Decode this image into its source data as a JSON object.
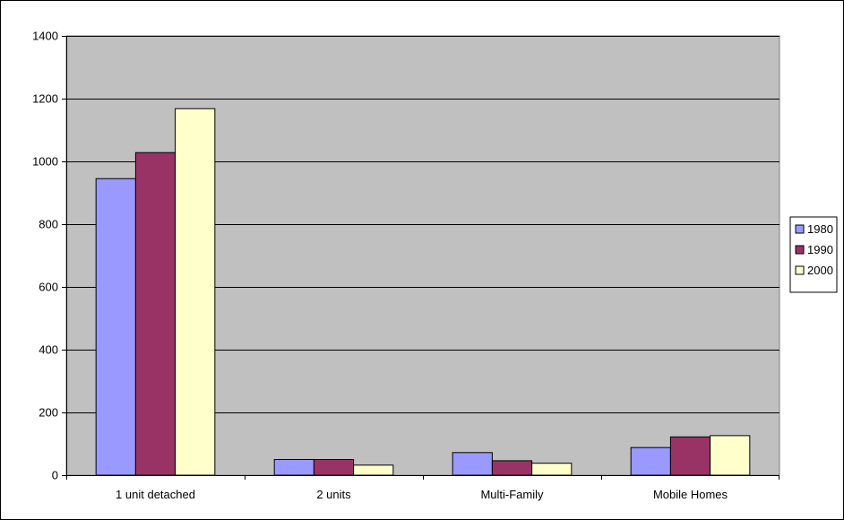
{
  "chart_data": {
    "type": "bar",
    "categories": [
      "1 unit detached",
      "2 units",
      "Multi-Family",
      "Mobile Homes"
    ],
    "series": [
      {
        "name": "1980",
        "values": [
          945,
          50,
          72,
          88
        ]
      },
      {
        "name": "1990",
        "values": [
          1028,
          50,
          46,
          122
        ]
      },
      {
        "name": "2000",
        "values": [
          1168,
          32,
          38,
          126
        ]
      }
    ],
    "ylim": [
      0,
      1400
    ],
    "yticks": [
      0,
      200,
      400,
      600,
      800,
      1000,
      1200,
      1400
    ],
    "grid": true,
    "legend_position": "right",
    "colors": {
      "plot_background": "#c0c0c0",
      "series": [
        "#9999ff",
        "#993366",
        "#ffffcc"
      ]
    }
  }
}
